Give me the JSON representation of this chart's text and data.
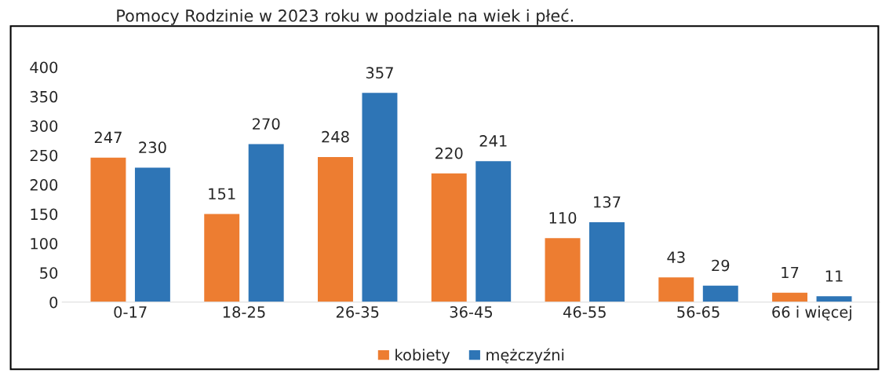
{
  "chart_data": {
    "type": "bar",
    "title": "Pomocy Rodzinie w 2023 roku w podziale na wiek i płeć.",
    "categories": [
      "0-17",
      "18-25",
      "26-35",
      "36-45",
      "46-55",
      "56-65",
      "66 i więcej"
    ],
    "series": [
      {
        "name": "kobiety",
        "color": "#ed7d31",
        "values": [
          247,
          151,
          248,
          220,
          110,
          43,
          17
        ]
      },
      {
        "name": "mężczyźni",
        "color": "#2e75b6",
        "values": [
          230,
          270,
          357,
          241,
          137,
          29,
          11
        ]
      }
    ],
    "ylim": [
      0,
      400
    ],
    "yticks": [
      0,
      50,
      100,
      150,
      200,
      250,
      300,
      350,
      400
    ],
    "data_labels": true,
    "legend": "bottom",
    "grid": false
  }
}
